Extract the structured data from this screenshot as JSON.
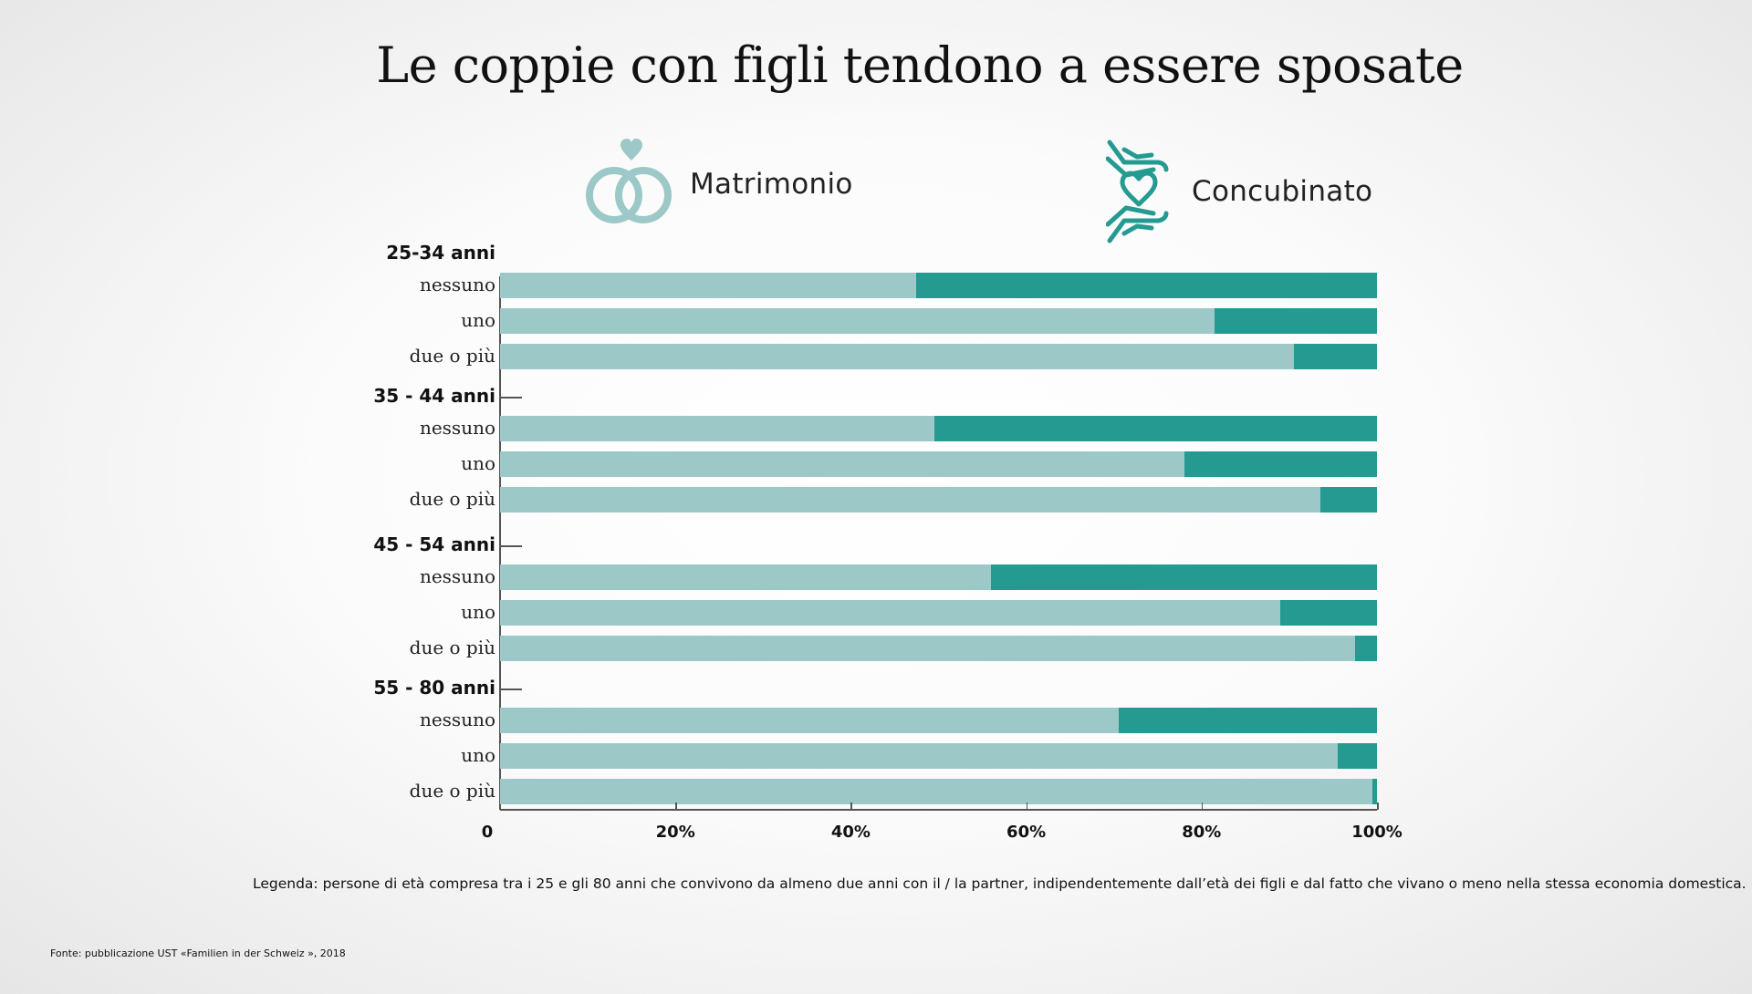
{
  "title": "Le coppie con figli tendono a essere sposate",
  "legend": [
    {
      "label": "Matrimonio",
      "color": "#9dc8c8",
      "icon": "wedding-rings-icon"
    },
    {
      "label": "Concubinato",
      "color": "#249a91",
      "icon": "hands-heart-icon"
    }
  ],
  "chart_data": {
    "type": "bar",
    "orientation": "horizontal",
    "stacked": true,
    "xlim": [
      0,
      100
    ],
    "ticks": [
      "0",
      "20%",
      "40%",
      "60%",
      "80%",
      "100%"
    ],
    "groups": [
      {
        "label": "25-34 anni",
        "rows": [
          {
            "label": "nessuno",
            "married": 47.5,
            "cohab": 52.5
          },
          {
            "label": "uno",
            "married": 81.5,
            "cohab": 18.5
          },
          {
            "label": "due o più",
            "married": 90.5,
            "cohab": 9.5
          }
        ]
      },
      {
        "label": "35 - 44 anni",
        "rows": [
          {
            "label": "nessuno",
            "married": 49.5,
            "cohab": 50.5
          },
          {
            "label": "uno",
            "married": 78,
            "cohab": 22
          },
          {
            "label": "due o più",
            "married": 93.5,
            "cohab": 6.5
          }
        ]
      },
      {
        "label": "45 - 54 anni",
        "rows": [
          {
            "label": "nessuno",
            "married": 56,
            "cohab": 44
          },
          {
            "label": "uno",
            "married": 89,
            "cohab": 11
          },
          {
            "label": "due o più",
            "married": 97.5,
            "cohab": 2.5
          }
        ]
      },
      {
        "label": "55 - 80 anni",
        "rows": [
          {
            "label": "nessuno",
            "married": 70.5,
            "cohab": 29.5
          },
          {
            "label": "uno",
            "married": 95.5,
            "cohab": 4.5
          },
          {
            "label": "due o più",
            "married": 99.5,
            "cohab": 0.5
          }
        ]
      }
    ]
  },
  "legend_note": "Legenda: persone di età compresa tra i 25 e gli 80 anni che convivono da almeno due anni con il / la partner, indipendentemente dall’età dei figli e dal fatto che vivano o meno nella stessa economia domestica.",
  "source": "Fonte: pubblicazione UST «Familien in der Schweiz », 2018"
}
